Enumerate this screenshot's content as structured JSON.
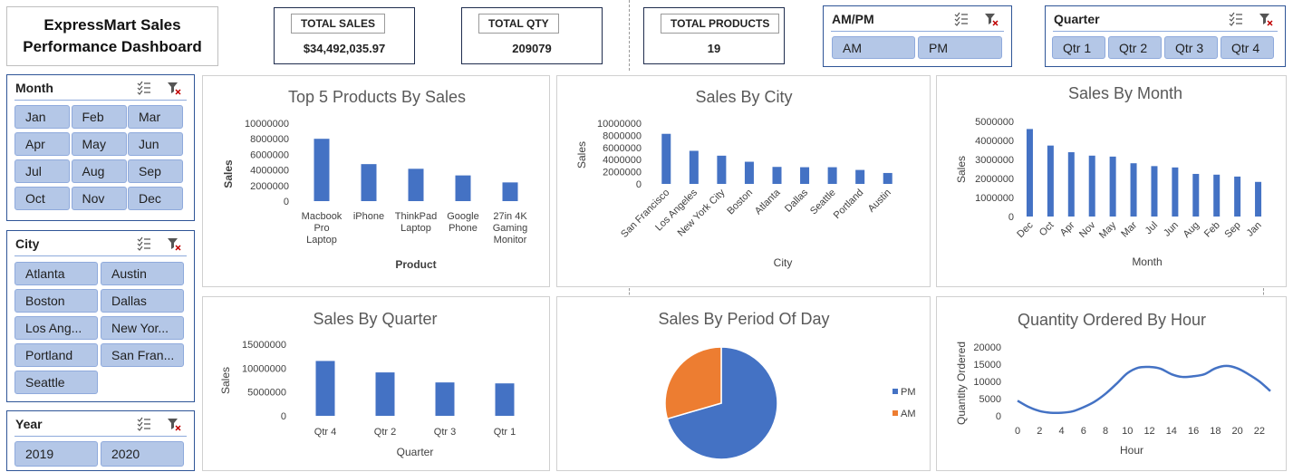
{
  "title": {
    "line1": "ExpressMart Sales",
    "line2": "Performance Dashboard"
  },
  "kpis": {
    "sales": {
      "label": "TOTAL SALES",
      "value": "$34,492,035.97"
    },
    "qty": {
      "label": "TOTAL QTY",
      "value": "209079"
    },
    "products": {
      "label": "TOTAL PRODUCTS",
      "value": "19"
    }
  },
  "slicers": {
    "ampm": {
      "header": "AM/PM",
      "items": [
        "AM",
        "PM"
      ]
    },
    "quarter": {
      "header": "Quarter",
      "items": [
        "Qtr 1",
        "Qtr 2",
        "Qtr 3",
        "Qtr 4"
      ]
    },
    "month": {
      "header": "Month",
      "items": [
        "Jan",
        "Feb",
        "Mar",
        "Apr",
        "May",
        "Jun",
        "Jul",
        "Aug",
        "Sep",
        "Oct",
        "Nov",
        "Dec"
      ]
    },
    "city": {
      "header": "City",
      "items": [
        "Atlanta",
        "Austin",
        "Boston",
        "Dallas",
        "Los Ang...",
        "New Yor...",
        "Portland",
        "San Fran...",
        "Seattle"
      ]
    },
    "year": {
      "header": "Year",
      "items": [
        "2019",
        "2020"
      ]
    }
  },
  "colors": {
    "bar": "#4472c4",
    "am": "#ed7d31",
    "pm": "#4472c4",
    "line": "#4472c4"
  },
  "chart_data": [
    {
      "id": "top-products",
      "type": "bar",
      "title": "Top 5 Products By Sales",
      "xlabel": "Product",
      "ylabel": "Sales",
      "ylim": [
        0,
        10000000
      ],
      "yticks": [
        "10000000",
        "8000000",
        "6000000",
        "4000000",
        "2000000",
        "0"
      ],
      "categories": [
        "Macbook Pro Laptop",
        "iPhone",
        "ThinkPad Laptop",
        "Google Phone",
        "27in 4K Gaming Monitor"
      ],
      "category_lines": [
        [
          "Macbook",
          "Pro",
          "Laptop"
        ],
        [
          "iPhone"
        ],
        [
          "ThinkPad",
          "Laptop"
        ],
        [
          "Google",
          "Phone"
        ],
        [
          "27in 4K",
          "Gaming",
          "Monitor"
        ]
      ],
      "values": [
        8000000,
        4750000,
        4150000,
        3300000,
        2400000
      ]
    },
    {
      "id": "sales-city",
      "type": "bar",
      "title": "Sales By City",
      "xlabel": "City",
      "ylabel": "Sales",
      "ylim": [
        0,
        10000000
      ],
      "yticks": [
        "10000000",
        "8000000",
        "6000000",
        "4000000",
        "2000000",
        "0"
      ],
      "categories": [
        "San Francisco",
        "Los Angeles",
        "New York City",
        "Boston",
        "Atlanta",
        "Dallas",
        "Seattle",
        "Portland",
        "Austin"
      ],
      "values": [
        8250000,
        5450000,
        4650000,
        3650000,
        2800000,
        2750000,
        2750000,
        2300000,
        1800000
      ]
    },
    {
      "id": "sales-month",
      "type": "bar",
      "title": "Sales By Month",
      "xlabel": "Month",
      "ylabel": "Sales",
      "ylim": [
        0,
        5000000
      ],
      "yticks": [
        "5000000",
        "4000000",
        "3000000",
        "2000000",
        "1000000",
        "0"
      ],
      "categories": [
        "Dec",
        "Oct",
        "Apr",
        "Nov",
        "May",
        "Mar",
        "Jul",
        "Jun",
        "Aug",
        "Feb",
        "Sep",
        "Jan"
      ],
      "values": [
        4600000,
        3730000,
        3380000,
        3200000,
        3150000,
        2800000,
        2650000,
        2580000,
        2240000,
        2200000,
        2100000,
        1820000
      ]
    },
    {
      "id": "sales-quarter",
      "type": "bar",
      "title": "Sales By Quarter",
      "xlabel": "Quarter",
      "ylabel": "Sales",
      "ylim": [
        0,
        15000000
      ],
      "yticks": [
        "15000000",
        "10000000",
        "5000000",
        "0"
      ],
      "categories": [
        "Qtr 4",
        "Qtr 2",
        "Qtr 3",
        "Qtr 1"
      ],
      "values": [
        11500000,
        9100000,
        7000000,
        6800000
      ]
    },
    {
      "id": "period-day",
      "type": "pie",
      "title": "Sales By Period Of Day",
      "labels": [
        "PM",
        "AM"
      ],
      "values": [
        70.5,
        29.5
      ],
      "legend": "right"
    },
    {
      "id": "qty-hour",
      "type": "line",
      "title": "Quantity Ordered By Hour",
      "xlabel": "Hour",
      "ylabel": "Quantity Ordered",
      "ylim": [
        0,
        20000
      ],
      "yticks": [
        "20000",
        "15000",
        "10000",
        "5000",
        "0"
      ],
      "xticks": [
        "0",
        "2",
        "4",
        "6",
        "8",
        "10",
        "12",
        "14",
        "16",
        "18",
        "20",
        "22"
      ],
      "x": [
        0,
        1,
        2,
        3,
        4,
        5,
        6,
        7,
        8,
        9,
        10,
        11,
        12,
        13,
        14,
        15,
        16,
        17,
        18,
        19,
        20,
        21,
        22,
        23
      ],
      "values": [
        4400,
        2600,
        1400,
        900,
        900,
        1300,
        2500,
        4100,
        6400,
        9300,
        12400,
        14000,
        14200,
        13700,
        12100,
        11300,
        11500,
        12100,
        13800,
        14500,
        13800,
        12100,
        10000,
        7200
      ]
    }
  ]
}
